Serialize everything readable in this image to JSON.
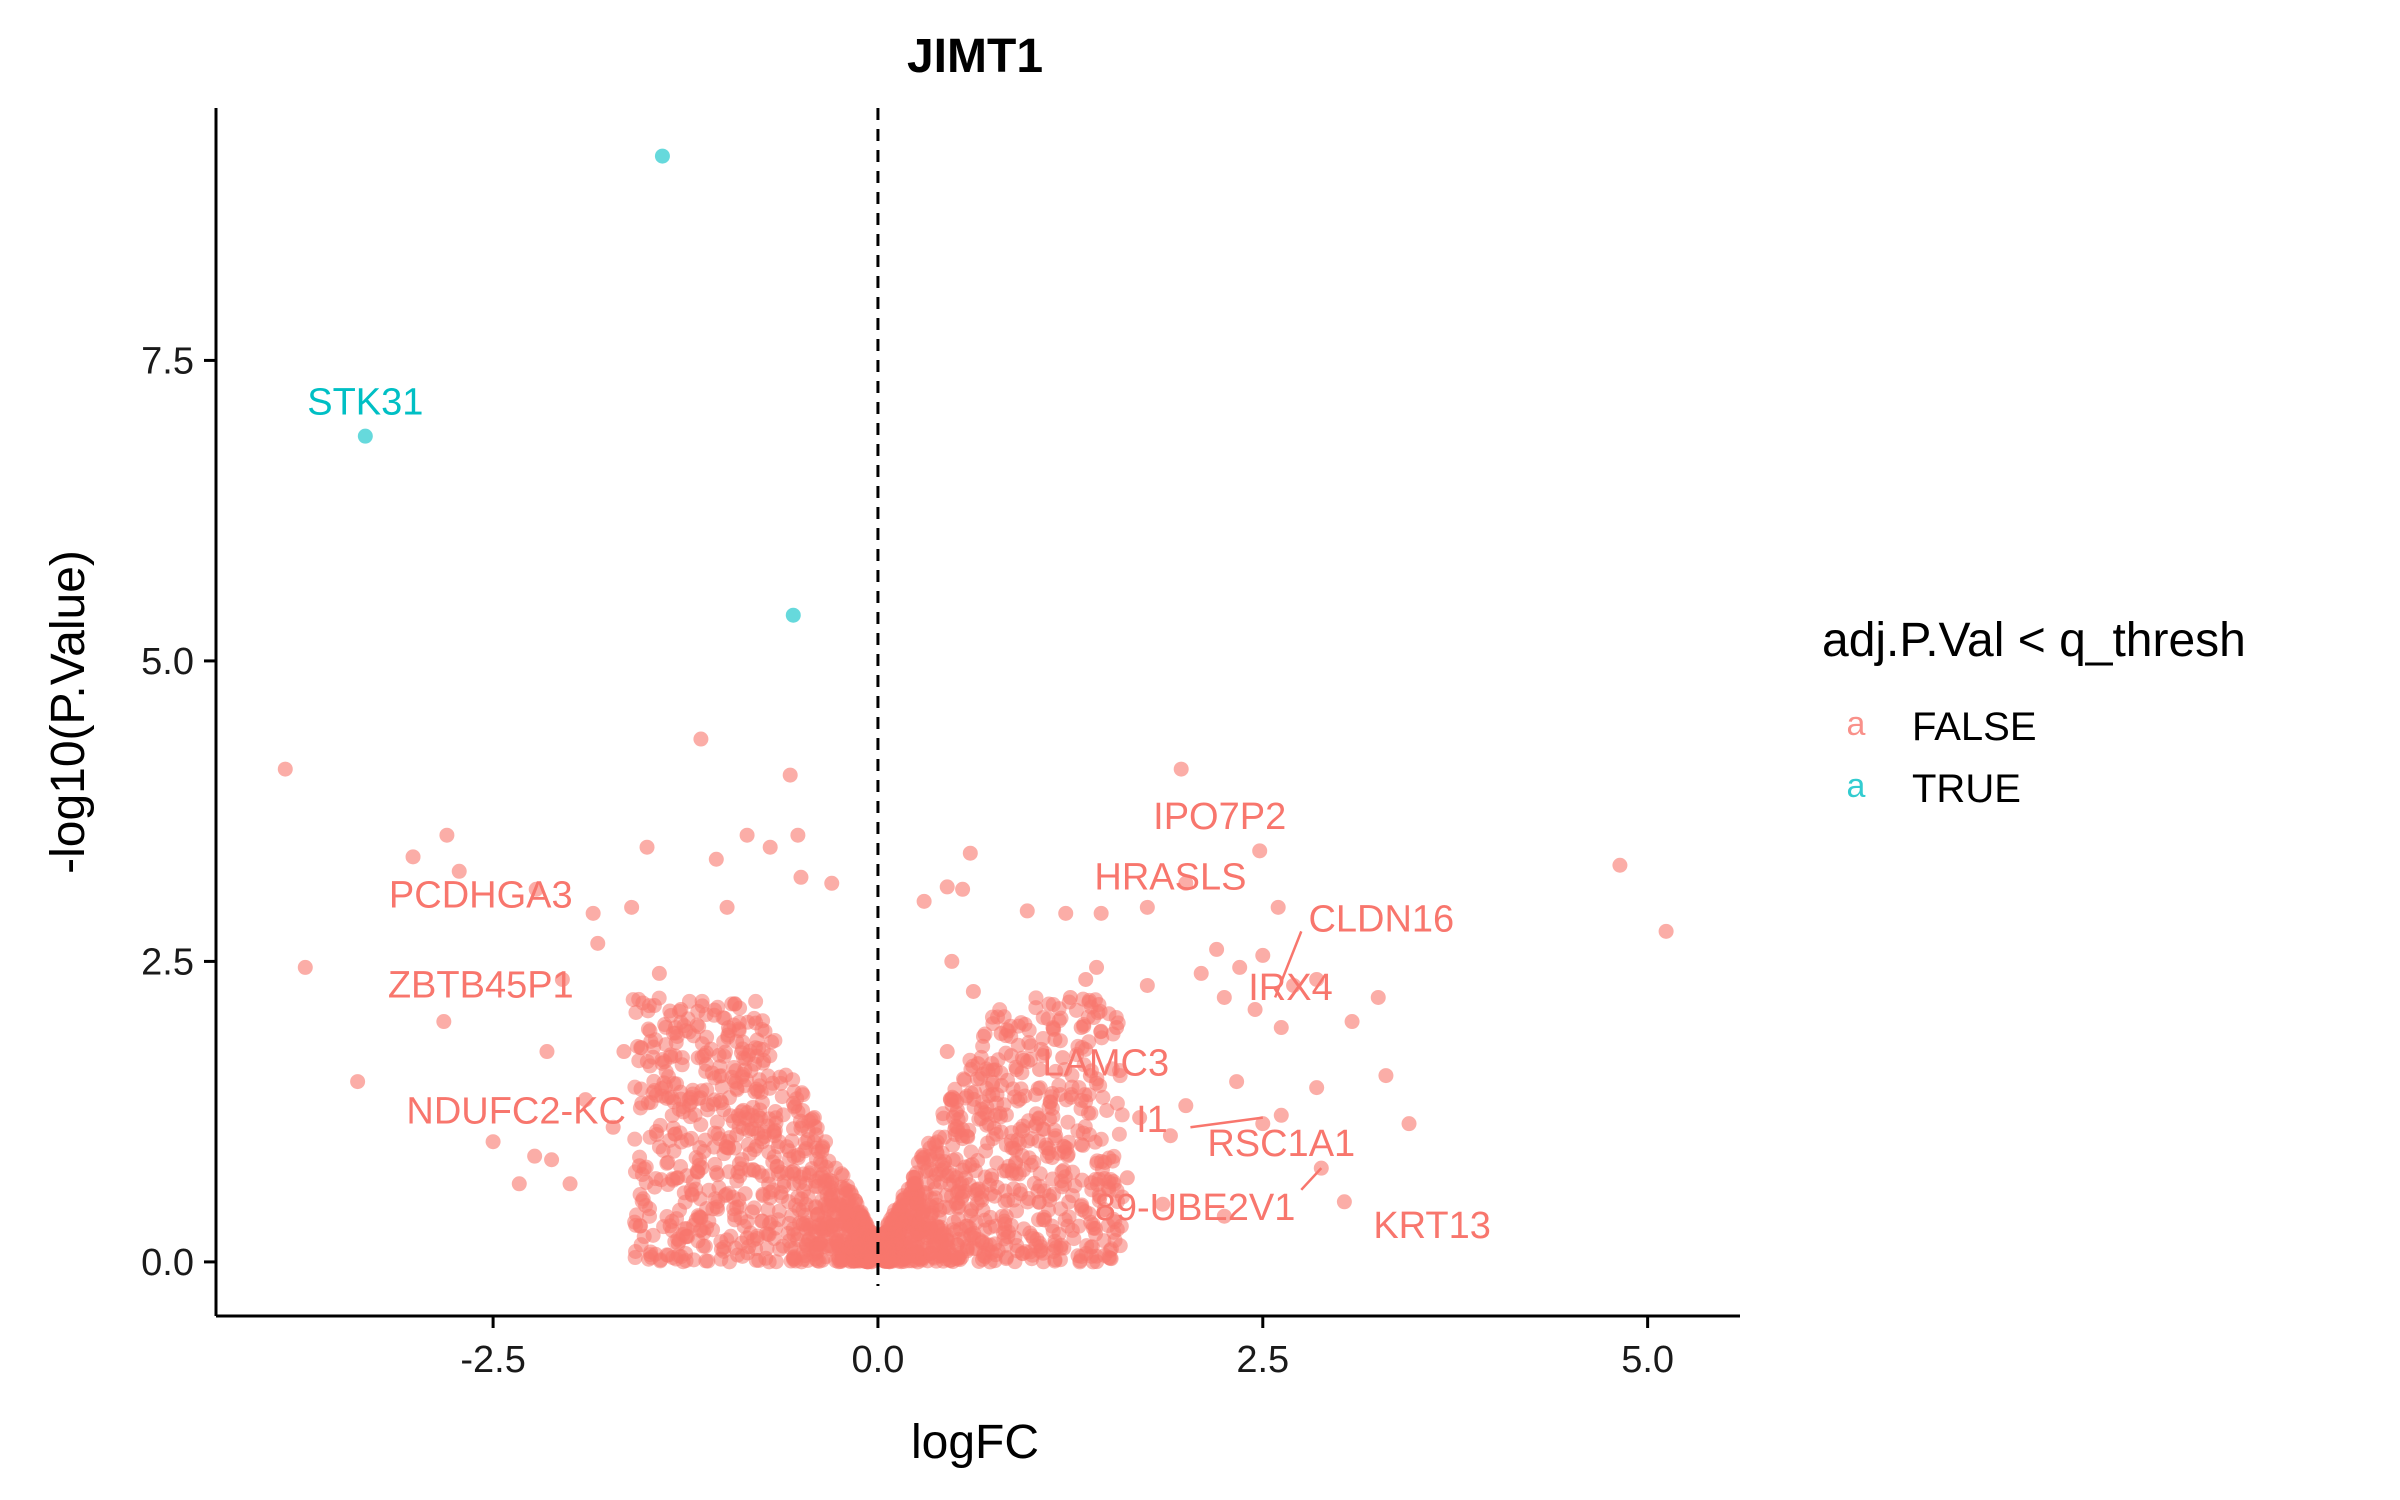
{
  "chart_data": {
    "type": "scatter",
    "title": "JIMT1",
    "xlabel": "logFC",
    "ylabel": "-log10(P.Value)",
    "xlim": [
      -4.3,
      5.6
    ],
    "ylim": [
      -0.45,
      9.6
    ],
    "x_ticks": [
      -2.5,
      0.0,
      2.5,
      5.0
    ],
    "x_tick_labels": [
      "-2.5",
      "0.0",
      "2.5",
      "5.0"
    ],
    "y_ticks": [
      0.0,
      2.5,
      5.0,
      7.5
    ],
    "y_tick_labels": [
      "0.0",
      "2.5",
      "5.0",
      "7.5"
    ],
    "vline_x": 0,
    "grid": false,
    "legend": {
      "title": "adj.P.Val < q_thresh",
      "position": "right",
      "key_glyph": "a",
      "entries": [
        {
          "label": "FALSE",
          "color": "#F8766D"
        },
        {
          "label": "TRUE",
          "color": "#00BFC4"
        }
      ]
    },
    "series": [
      {
        "name": "TRUE",
        "color": "#00BFC4",
        "points": [
          [
            -1.4,
            9.2
          ],
          [
            -3.33,
            6.87
          ],
          [
            -0.55,
            5.38
          ]
        ]
      },
      {
        "name": "FALSE",
        "color": "#F8766D",
        "points": [
          [
            -3.85,
            4.1
          ],
          [
            -3.72,
            2.45
          ],
          [
            -3.38,
            1.5
          ],
          [
            -3.02,
            3.37
          ],
          [
            -2.8,
            3.55
          ],
          [
            -2.82,
            2.0
          ],
          [
            -2.72,
            3.25
          ],
          [
            -2.5,
            1.0
          ],
          [
            -2.33,
            0.65
          ],
          [
            -2.23,
            0.88
          ],
          [
            -2.15,
            1.75
          ],
          [
            -2.12,
            0.85
          ],
          [
            -2.22,
            3.1
          ],
          [
            -2.05,
            2.35
          ],
          [
            -2.0,
            0.65
          ],
          [
            -1.82,
            2.65
          ],
          [
            -1.85,
            2.9
          ],
          [
            -1.6,
            2.95
          ],
          [
            -1.5,
            3.45
          ],
          [
            -1.42,
            2.4
          ],
          [
            -1.15,
            4.35
          ],
          [
            -1.05,
            3.35
          ],
          [
            -0.98,
            2.95
          ],
          [
            -0.85,
            3.55
          ],
          [
            -0.7,
            3.45
          ],
          [
            -0.57,
            4.05
          ],
          [
            -0.52,
            3.55
          ],
          [
            -0.5,
            3.2
          ],
          [
            -0.3,
            3.15
          ],
          [
            -1.28,
            2.1
          ],
          [
            -1.65,
            1.75
          ],
          [
            -1.9,
            1.35
          ],
          [
            -1.72,
            1.12
          ],
          [
            -1.55,
            0.8
          ],
          [
            -1.3,
            0.7
          ],
          [
            -1.18,
            0.35
          ],
          [
            -1.35,
            0.3
          ],
          [
            -0.85,
            0.2
          ],
          [
            1.97,
            4.1
          ],
          [
            2.48,
            3.42
          ],
          [
            2.0,
            3.15
          ],
          [
            1.75,
            2.95
          ],
          [
            1.45,
            2.9
          ],
          [
            1.22,
            2.9
          ],
          [
            0.97,
            2.92
          ],
          [
            0.6,
            3.4
          ],
          [
            0.55,
            3.1
          ],
          [
            0.45,
            3.12
          ],
          [
            0.3,
            3.0
          ],
          [
            2.6,
            2.95
          ],
          [
            2.5,
            2.55
          ],
          [
            2.35,
            2.45
          ],
          [
            2.2,
            2.6
          ],
          [
            2.1,
            2.4
          ],
          [
            1.75,
            2.3
          ],
          [
            1.42,
            2.45
          ],
          [
            1.35,
            2.35
          ],
          [
            1.25,
            2.2
          ],
          [
            2.25,
            2.2
          ],
          [
            2.45,
            2.1
          ],
          [
            2.62,
            1.95
          ],
          [
            2.7,
            2.3
          ],
          [
            2.85,
            2.35
          ],
          [
            3.08,
            2.0
          ],
          [
            3.25,
            2.2
          ],
          [
            4.82,
            3.3
          ],
          [
            5.12,
            2.75
          ],
          [
            2.85,
            1.45
          ],
          [
            3.3,
            1.55
          ],
          [
            3.45,
            1.15
          ],
          [
            2.62,
            1.22
          ],
          [
            2.5,
            1.15
          ],
          [
            2.88,
            0.78
          ],
          [
            3.03,
            0.5
          ],
          [
            2.33,
            1.5
          ],
          [
            2.0,
            1.3
          ],
          [
            1.9,
            1.05
          ],
          [
            1.7,
            1.2
          ],
          [
            1.62,
            0.7
          ],
          [
            1.5,
            0.6
          ],
          [
            1.4,
            0.28
          ],
          [
            2.25,
            0.38
          ],
          [
            1.85,
            0.48
          ],
          [
            1.38,
            1.55
          ],
          [
            1.2,
            1.7
          ],
          [
            1.05,
            1.6
          ],
          [
            0.9,
            1.6
          ],
          [
            0.8,
            1.9
          ],
          [
            0.65,
            1.65
          ],
          [
            0.45,
            1.75
          ],
          [
            1.55,
            1.95
          ],
          [
            1.32,
            1.95
          ],
          [
            1.15,
            1.85
          ],
          [
            0.62,
            2.25
          ],
          [
            0.48,
            2.5
          ]
        ]
      }
    ],
    "annotations": [
      {
        "text": "STK31",
        "color": "#00BFC4",
        "x": -3.33,
        "y": 7.05
      },
      {
        "text": "PCDHGA3",
        "color": "#F8766D",
        "x": -2.58,
        "y": 2.95
      },
      {
        "text": "ZBTB45P1",
        "color": "#F8766D",
        "x": -2.58,
        "y": 2.2
      },
      {
        "text": "NDUFC2-KC",
        "color": "#F8766D",
        "x": -2.35,
        "y": 1.15
      },
      {
        "text": "IPO7P2",
        "color": "#F8766D",
        "x": 2.22,
        "y": 3.6
      },
      {
        "text": "HRASLS",
        "color": "#F8766D",
        "x": 1.9,
        "y": 3.1
      },
      {
        "text": "CLDN16",
        "color": "#F8766D",
        "x": 3.27,
        "y": 2.75
      },
      {
        "text": "IRX4",
        "color": "#F8766D",
        "x": 2.68,
        "y": 2.18
      },
      {
        "text": "LAMC3",
        "color": "#F8766D",
        "x": 1.48,
        "y": 1.55
      },
      {
        "text": "RSC1A1",
        "color": "#F8766D",
        "x": 2.62,
        "y": 0.88
      },
      {
        "text": "KRT13",
        "color": "#F8766D",
        "x": 3.6,
        "y": 0.2
      },
      {
        "text": "I1",
        "color": "#F8766D",
        "x": 1.78,
        "y": 1.08
      },
      {
        "text": "89-UBE2V1",
        "color": "#F8766D",
        "x": 2.06,
        "y": 0.35
      }
    ]
  }
}
